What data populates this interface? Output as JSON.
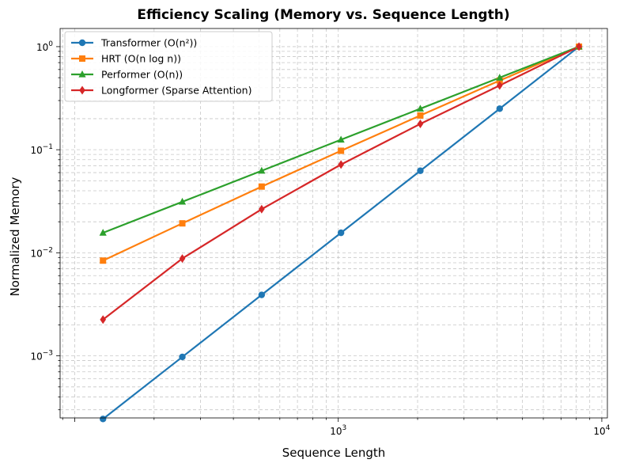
{
  "chart_data": {
    "type": "line",
    "title": "Efficiency Scaling (Memory vs. Sequence Length)",
    "xlabel": "Sequence Length",
    "ylabel": "Normalized Memory",
    "x_scale": "log",
    "y_scale": "log",
    "xlim": [
      88,
      10500
    ],
    "ylim": [
      0.00025,
      1.5
    ],
    "x_ticks": [
      {
        "value": 1000,
        "base": "10",
        "exp": "3"
      },
      {
        "value": 10000,
        "base": "10",
        "exp": "4"
      }
    ],
    "y_ticks": [
      {
        "value": 0.001,
        "base": "10",
        "exp": "−3"
      },
      {
        "value": 0.01,
        "base": "10",
        "exp": "−2"
      },
      {
        "value": 0.1,
        "base": "10",
        "exp": "−1"
      },
      {
        "value": 1,
        "base": "10",
        "exp": "0"
      }
    ],
    "grid": true,
    "legend_position": "top-left",
    "x": [
      128,
      256,
      512,
      1024,
      2048,
      4096,
      8192
    ],
    "series": [
      {
        "name": "Transformer (O(n²))",
        "color": "#1f77b4",
        "marker": "circle",
        "values": [
          0.00024414,
          0.00097656,
          0.00390625,
          0.015625,
          0.0625,
          0.25,
          1.0
        ]
      },
      {
        "name": "HRT (O(n log n))",
        "color": "#ff7f0e",
        "marker": "square",
        "values": [
          0.0084,
          0.0193,
          0.0439,
          0.0977,
          0.2148,
          0.4688,
          1.0
        ]
      },
      {
        "name": "Performer (O(n))",
        "color": "#2ca02c",
        "marker": "triangle",
        "values": [
          0.015625,
          0.03125,
          0.0625,
          0.125,
          0.25,
          0.5,
          1.0
        ]
      },
      {
        "name": "Longformer (Sparse Attention)",
        "color": "#d62728",
        "marker": "diamond",
        "values": [
          0.00225,
          0.0088,
          0.0265,
          0.0718,
          0.178,
          0.42,
          1.0
        ]
      }
    ]
  }
}
